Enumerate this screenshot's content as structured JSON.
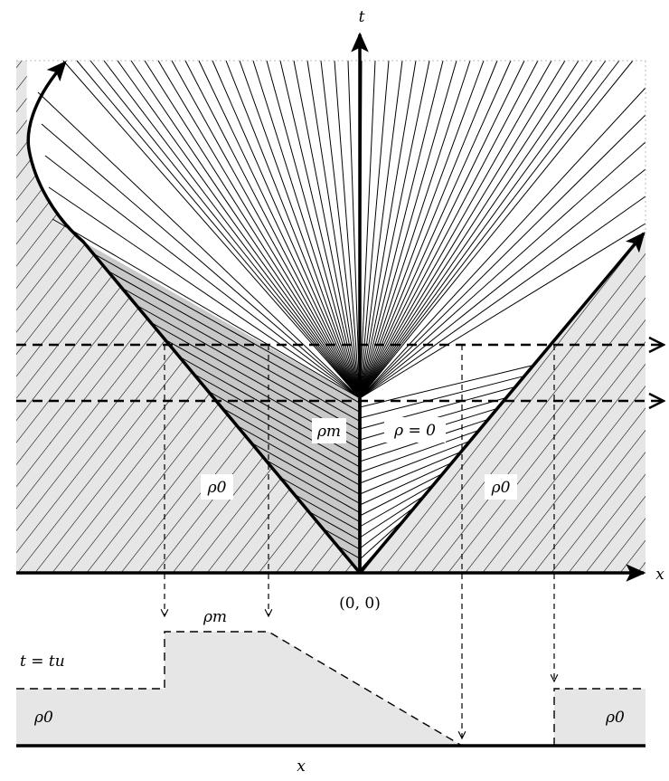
{
  "labels": {
    "t_axis": "t",
    "x_axis": "x",
    "origin": "(0, 0)",
    "rho_m_region": "ρm",
    "rho_zero_region": "ρ = 0",
    "rho0_left": "ρ0",
    "rho0_right": "ρ0",
    "rho_m_profile": "ρm",
    "time_label": "t = tu",
    "rho0_profile_left": "ρ0",
    "rho0_profile_right": "ρ0",
    "profile_x_axis": "x"
  },
  "colors": {
    "stroke": "#000000",
    "fan_region_fill": "#c8c8c8",
    "uniform_region_fill": "#e6e6e6",
    "background": "#ffffff"
  }
}
